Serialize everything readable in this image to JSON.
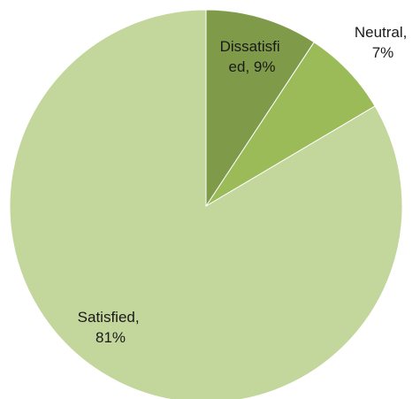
{
  "chart_data": {
    "type": "pie",
    "title": "",
    "slices": [
      {
        "name": "Dissatisfied",
        "value": 9,
        "color": "#7f9a48",
        "label_lines": [
          "Dissatisfi",
          "ed, 9%"
        ]
      },
      {
        "name": "Neutral",
        "value": 7,
        "color": "#9bbb59",
        "label_lines": [
          "Neutral,",
          "7%"
        ]
      },
      {
        "name": "Satisfied",
        "value": 81,
        "color": "#c3d69b",
        "label_lines": [
          "Satisfied,",
          "81%"
        ]
      }
    ]
  }
}
